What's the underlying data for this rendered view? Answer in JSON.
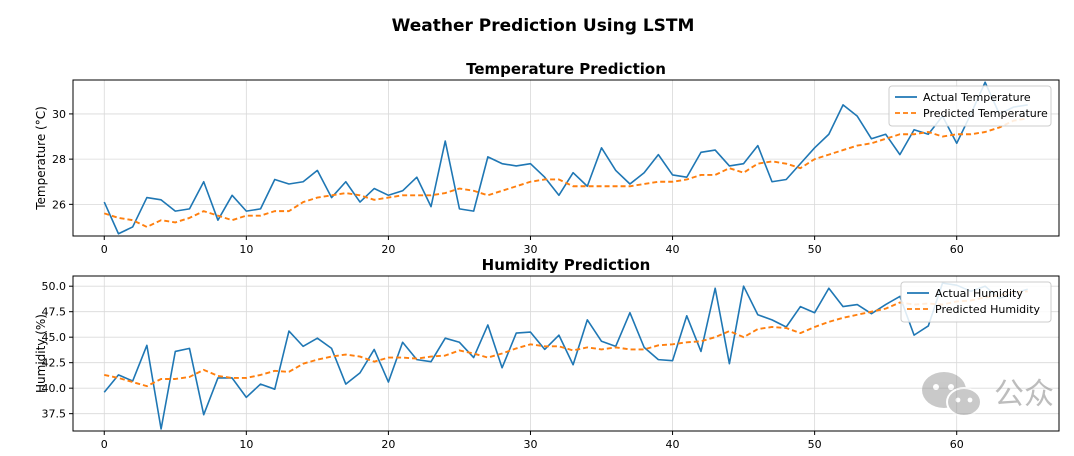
{
  "figure": {
    "title": "Weather Prediction Using LSTM",
    "watermark_text": "公众"
  },
  "chart_data": [
    {
      "type": "line",
      "title": "Temperature Prediction",
      "xlabel": "",
      "ylabel": "Temperature (°C)",
      "xlim": [
        -2.2,
        67.2
      ],
      "ylim": [
        24.6,
        31.5
      ],
      "xticks": [
        0,
        10,
        20,
        30,
        40,
        50,
        60
      ],
      "yticks": [
        26,
        28,
        30
      ],
      "grid": true,
      "legend_position": "top-right",
      "series": [
        {
          "name": "Actual Temperature",
          "color": "#1f77b4",
          "style": "solid",
          "values": [
            26.1,
            24.7,
            25.0,
            26.3,
            26.2,
            25.7,
            25.8,
            27.0,
            25.3,
            26.4,
            25.7,
            25.8,
            27.1,
            26.9,
            27.0,
            27.5,
            26.3,
            27.0,
            26.1,
            26.7,
            26.4,
            26.6,
            27.2,
            25.9,
            28.8,
            25.8,
            25.7,
            28.1,
            27.8,
            27.7,
            27.8,
            27.2,
            26.4,
            27.4,
            26.8,
            28.5,
            27.5,
            26.9,
            27.4,
            28.2,
            27.3,
            27.2,
            28.3,
            28.4,
            27.7,
            27.8,
            28.6,
            27.0,
            27.1,
            27.8,
            28.5,
            29.1,
            30.4,
            29.9,
            28.9,
            29.1,
            28.2,
            29.3,
            29.1,
            29.9,
            28.7,
            30.0,
            31.4,
            30.0,
            30.3,
            30.4
          ]
        },
        {
          "name": "Predicted Temperature",
          "color": "#ff7f0e",
          "style": "dashed",
          "values": [
            25.6,
            25.4,
            25.3,
            25.0,
            25.3,
            25.2,
            25.4,
            25.7,
            25.5,
            25.3,
            25.5,
            25.5,
            25.7,
            25.7,
            26.1,
            26.3,
            26.4,
            26.5,
            26.4,
            26.2,
            26.3,
            26.4,
            26.4,
            26.4,
            26.5,
            26.7,
            26.6,
            26.4,
            26.6,
            26.8,
            27.0,
            27.1,
            27.1,
            26.8,
            26.8,
            26.8,
            26.8,
            26.8,
            26.9,
            27.0,
            27.0,
            27.1,
            27.3,
            27.3,
            27.6,
            27.4,
            27.8,
            27.9,
            27.8,
            27.6,
            28.0,
            28.2,
            28.4,
            28.6,
            28.7,
            28.9,
            29.1,
            29.1,
            29.2,
            29.0,
            29.1,
            29.1,
            29.2,
            29.4,
            29.7,
            29.8
          ]
        }
      ]
    },
    {
      "type": "line",
      "title": "Humidity Prediction",
      "xlabel": "",
      "ylabel": "Humidity (%)",
      "xlim": [
        -2.2,
        67.2
      ],
      "ylim": [
        35.8,
        51.0
      ],
      "xticks": [
        0,
        10,
        20,
        30,
        40,
        50,
        60
      ],
      "yticks": [
        37.5,
        40.0,
        42.5,
        45.0,
        47.5,
        50.0
      ],
      "grid": true,
      "legend_position": "top-right",
      "series": [
        {
          "name": "Actual Humidity",
          "color": "#1f77b4",
          "style": "solid",
          "values": [
            39.6,
            41.3,
            40.7,
            44.2,
            36.0,
            43.6,
            43.9,
            37.4,
            41.0,
            41.0,
            39.1,
            40.4,
            39.9,
            45.6,
            44.1,
            44.9,
            43.9,
            40.4,
            41.5,
            43.8,
            40.6,
            44.5,
            42.8,
            42.6,
            44.9,
            44.5,
            43.0,
            46.2,
            42.0,
            45.4,
            45.5,
            43.8,
            45.2,
            42.3,
            46.7,
            44.6,
            44.1,
            47.4,
            44.0,
            42.8,
            42.7,
            47.1,
            43.6,
            49.8,
            42.4,
            50.0,
            47.2,
            46.7,
            46.0,
            48.0,
            47.4,
            49.8,
            48.0,
            48.2,
            47.3,
            48.2,
            49.0,
            45.2,
            46.1,
            50.3,
            50.1,
            49.5,
            50.0,
            48.8,
            49.3,
            49.7
          ]
        },
        {
          "name": "Predicted Humidity",
          "color": "#ff7f0e",
          "style": "dashed",
          "values": [
            41.3,
            41.0,
            40.6,
            40.2,
            40.9,
            40.9,
            41.1,
            41.8,
            41.2,
            41.0,
            41.0,
            41.3,
            41.7,
            41.6,
            42.4,
            42.8,
            43.1,
            43.3,
            43.1,
            42.6,
            43.0,
            43.0,
            42.9,
            43.1,
            43.2,
            43.7,
            43.4,
            43.0,
            43.4,
            43.9,
            44.3,
            44.1,
            44.1,
            43.7,
            44.0,
            43.8,
            44.0,
            43.8,
            43.8,
            44.2,
            44.3,
            44.5,
            44.6,
            45.0,
            45.6,
            45.0,
            45.8,
            46.0,
            45.9,
            45.4,
            46.0,
            46.5,
            46.9,
            47.2,
            47.5,
            47.8,
            48.4,
            48.2,
            48.3,
            48.2,
            48.5,
            48.6,
            48.9,
            49.1,
            49.4,
            49.5
          ]
        }
      ]
    }
  ]
}
